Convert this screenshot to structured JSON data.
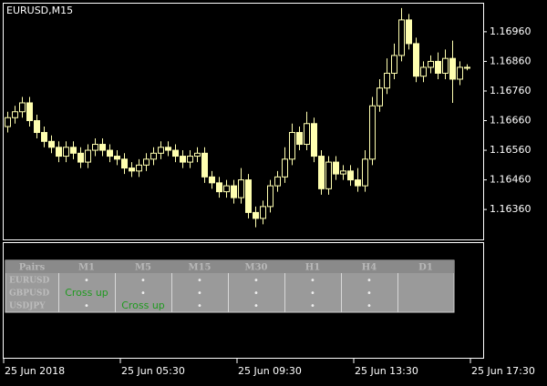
{
  "chart_data": {
    "type": "candlestick",
    "title": "EURUSD,M15",
    "up_color": "#ffffb0",
    "down_color": "#ffffb0",
    "categories": [
      "25 Jun 2018",
      null,
      null,
      null,
      null,
      null,
      null,
      null,
      null,
      null,
      null,
      null,
      null,
      null,
      null,
      null,
      "25 Jun 05:30",
      null,
      null,
      null,
      null,
      null,
      null,
      null,
      null,
      null,
      null,
      null,
      null,
      null,
      null,
      null,
      "25 Jun 09:30",
      null,
      null,
      null,
      null,
      null,
      null,
      null,
      null,
      null,
      null,
      null,
      null,
      null,
      null,
      null,
      "25 Jun 13:30",
      null,
      null,
      null,
      null,
      null,
      null,
      null,
      null,
      null,
      null,
      null,
      null,
      null,
      null,
      null,
      "25 Jun 17:30"
    ],
    "open": [
      1.1664,
      1.1667,
      1.1669,
      1.1672,
      1.1666,
      1.1662,
      1.1659,
      1.1657,
      1.1654,
      1.1657,
      1.1655,
      1.1652,
      1.1656,
      1.1658,
      1.1656,
      1.1654,
      1.1653,
      1.165,
      1.1649,
      1.1651,
      1.1653,
      1.1655,
      1.1657,
      1.1656,
      1.1654,
      1.1652,
      1.1654,
      1.1655,
      1.1647,
      1.1645,
      1.1642,
      1.1644,
      1.164,
      1.1646,
      1.1635,
      1.1633,
      1.1637,
      1.1644,
      1.1647,
      1.1653,
      1.1662,
      1.1658,
      1.1665,
      1.1654,
      1.1643,
      1.1652,
      1.1648,
      1.1649,
      1.1646,
      1.1644,
      1.1653,
      1.1671,
      1.1677,
      1.1682,
      1.1688,
      1.17,
      1.1692,
      1.1681,
      1.1684,
      1.1686,
      1.1682,
      1.1687,
      1.168,
      1.1684,
      null
    ],
    "high": [
      1.1669,
      1.1671,
      1.1674,
      1.1674,
      1.1668,
      1.1664,
      1.1661,
      1.1659,
      1.1659,
      1.1659,
      1.1657,
      1.1658,
      1.166,
      1.166,
      1.1658,
      1.1656,
      1.1655,
      1.1652,
      1.1653,
      1.1655,
      1.1657,
      1.1659,
      1.1659,
      1.1658,
      1.1656,
      1.1656,
      1.1657,
      1.1657,
      1.1649,
      1.1647,
      1.1646,
      1.1646,
      1.165,
      1.1648,
      1.1637,
      1.1639,
      1.1646,
      1.1649,
      1.1657,
      1.1665,
      1.1664,
      1.1669,
      1.1667,
      1.1656,
      1.1654,
      1.1654,
      1.1651,
      1.1651,
      1.165,
      1.1656,
      1.1674,
      1.168,
      1.1687,
      1.1692,
      1.1704,
      1.1702,
      1.1694,
      1.1686,
      1.1688,
      1.1689,
      1.169,
      1.1693,
      1.1686,
      1.1685,
      null
    ],
    "low": [
      1.1662,
      1.1665,
      1.1667,
      1.1664,
      1.166,
      1.1657,
      1.1655,
      1.1652,
      1.1652,
      1.1653,
      1.165,
      1.165,
      1.1654,
      1.1654,
      1.1652,
      1.1651,
      1.1648,
      1.1647,
      1.1647,
      1.1649,
      1.1651,
      1.1653,
      1.1654,
      1.1652,
      1.165,
      1.165,
      1.1652,
      1.1645,
      1.1643,
      1.164,
      1.164,
      1.1638,
      1.1638,
      1.1633,
      1.163,
      1.1631,
      1.1635,
      1.1642,
      1.1645,
      1.1651,
      1.1656,
      1.1656,
      1.1652,
      1.1641,
      1.1641,
      1.1646,
      1.1646,
      1.1644,
      1.1642,
      1.1642,
      1.1651,
      1.1669,
      1.1675,
      1.168,
      1.1686,
      1.169,
      1.1679,
      1.1679,
      1.1682,
      1.168,
      1.168,
      1.1672,
      1.1678,
      1.1683,
      null
    ],
    "close": [
      1.1667,
      1.1669,
      1.1672,
      1.1666,
      1.1662,
      1.1659,
      1.1657,
      1.1654,
      1.1657,
      1.1655,
      1.1652,
      1.1656,
      1.1658,
      1.1656,
      1.1654,
      1.1653,
      1.165,
      1.1649,
      1.1651,
      1.1653,
      1.1655,
      1.1657,
      1.1656,
      1.1654,
      1.1652,
      1.1654,
      1.1655,
      1.1647,
      1.1645,
      1.1642,
      1.1644,
      1.164,
      1.1646,
      1.1635,
      1.1633,
      1.1637,
      1.1644,
      1.1647,
      1.1653,
      1.1662,
      1.1658,
      1.1665,
      1.1654,
      1.1643,
      1.1652,
      1.1648,
      1.1649,
      1.1646,
      1.1644,
      1.1653,
      1.1671,
      1.1677,
      1.1682,
      1.1688,
      1.17,
      1.1692,
      1.1681,
      1.1684,
      1.1686,
      1.1682,
      1.1687,
      1.168,
      1.1684,
      1.1684,
      null
    ],
    "ylim": [
      1.16259,
      1.17058
    ],
    "yticks": [
      {
        "value": 1.1636,
        "label": "1.16360"
      },
      {
        "value": 1.1646,
        "label": "1.16460"
      },
      {
        "value": 1.1656,
        "label": "1.16560"
      },
      {
        "value": 1.1666,
        "label": "1.16660"
      },
      {
        "value": 1.1676,
        "label": "1.16760"
      },
      {
        "value": 1.1686,
        "label": "1.16860"
      },
      {
        "value": 1.1696,
        "label": "1.16960"
      }
    ]
  },
  "table": {
    "header": [
      "Pairs",
      "M1",
      "M5",
      "M15",
      "M30",
      "H1",
      "H4",
      "D1"
    ],
    "rows": [
      [
        "EURUSD",
        "•",
        "•",
        "•",
        "•",
        "•",
        "•",
        ""
      ],
      [
        "GBPUSD",
        "Cross up",
        "•",
        "•",
        "•",
        "•",
        "•",
        ""
      ],
      [
        "USDJPY",
        "•",
        "Cross up",
        "•",
        "•",
        "•",
        "•",
        ""
      ]
    ]
  }
}
